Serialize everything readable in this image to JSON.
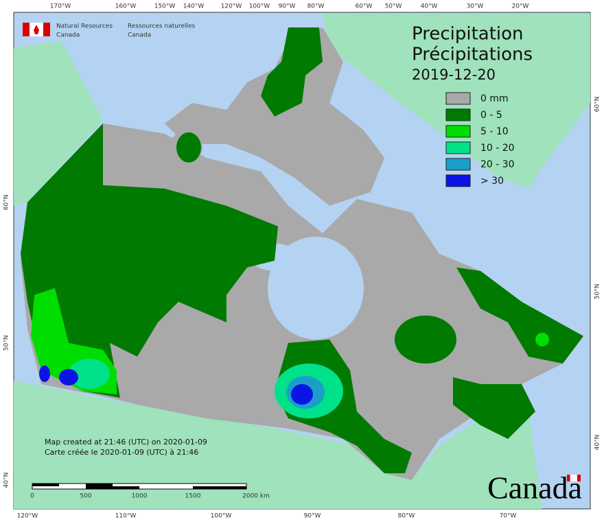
{
  "agency": {
    "en": [
      "Natural Resources",
      "Canada"
    ],
    "fr": [
      "Ressources naturelles",
      "Canada"
    ]
  },
  "title": {
    "line1": "Precipitation",
    "line2": "Précipitations",
    "date": "2019-12-20"
  },
  "legend": [
    {
      "label": "0 mm",
      "color": "#a9a9a9"
    },
    {
      "label": "0 - 5",
      "color": "#007a00"
    },
    {
      "label": "5 - 10",
      "color": "#00dd00"
    },
    {
      "label": "10 - 20",
      "color": "#00e28a"
    },
    {
      "label": "20 - 30",
      "color": "#1aa0c8"
    },
    {
      "label": "> 30",
      "color": "#0a14e6"
    }
  ],
  "top_labels": [
    "170°W",
    "160°W",
    "150°W",
    "140°W",
    "120°W",
    "100°W",
    "90°W",
    "80°W",
    "60°W",
    "50°W",
    "40°W",
    "30°W",
    "20°W"
  ],
  "bottom_labels": [
    "120°W",
    "110°W",
    "100°W",
    "90°W",
    "80°W",
    "70°W"
  ],
  "left_labels": [
    "60°N",
    "50°N",
    "40°N"
  ],
  "right_labels": [
    "60°N",
    "50°N",
    "40°N"
  ],
  "footer": [
    "Map created at 21:46 (UTC) on 2020-01-09",
    "Carte créée le 2020-01-09 (UTC) à 21:46"
  ],
  "scale_labels": [
    "0",
    "500",
    "1000",
    "1500",
    "2000 km"
  ],
  "wordmark": "Canada"
}
